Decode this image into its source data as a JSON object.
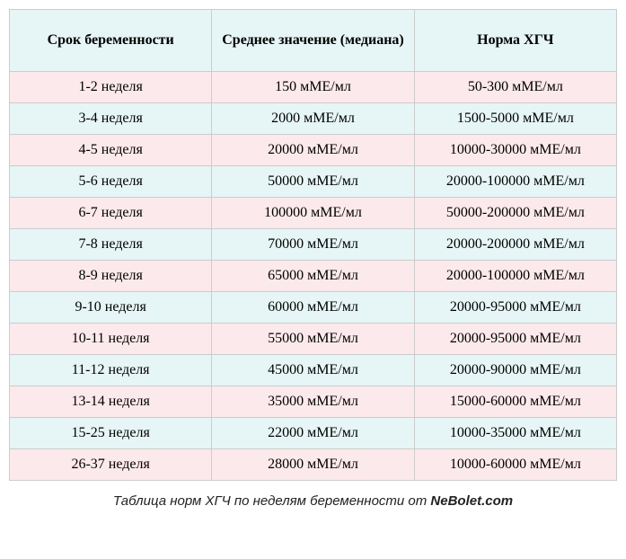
{
  "table": {
    "columns": [
      "Срок беременности",
      "Среднее значение (медиана)",
      "Норма ХГЧ"
    ],
    "rows": [
      [
        "1-2 неделя",
        "150 мМЕ/мл",
        "50-300 мМЕ/мл"
      ],
      [
        "3-4 неделя",
        "2000 мМЕ/мл",
        "1500-5000 мМЕ/мл"
      ],
      [
        "4-5 неделя",
        "20000 мМЕ/мл",
        "10000-30000 мМЕ/мл"
      ],
      [
        "5-6 неделя",
        "50000 мМЕ/мл",
        "20000-100000 мМЕ/мл"
      ],
      [
        "6-7 неделя",
        "100000 мМЕ/мл",
        "50000-200000 мМЕ/мл"
      ],
      [
        "7-8 неделя",
        "70000 мМЕ/мл",
        "20000-200000 мМЕ/мл"
      ],
      [
        "8-9 неделя",
        "65000 мМЕ/мл",
        "20000-100000 мМЕ/мл"
      ],
      [
        "9-10 неделя",
        "60000 мМЕ/мл",
        "20000-95000 мМЕ/мл"
      ],
      [
        "10-11 неделя",
        "55000 мМЕ/мл",
        "20000-95000 мМЕ/мл"
      ],
      [
        "11-12 неделя",
        "45000 мМЕ/мл",
        "20000-90000 мМЕ/мл"
      ],
      [
        "13-14 неделя",
        "35000 мМЕ/мл",
        "15000-60000 мМЕ/мл"
      ],
      [
        "15-25 неделя",
        "22000 мМЕ/мл",
        "10000-35000 мМЕ/мл"
      ],
      [
        "26-37 неделя",
        "28000 мМЕ/мл",
        "10000-60000 мМЕ/мл"
      ]
    ],
    "header_bg": "#e6f5f5",
    "row_odd_bg": "#fce9eb",
    "row_even_bg": "#e6f5f5",
    "border_color": "#cccccc",
    "font_family": "Times New Roman",
    "font_size_pt": 12
  },
  "caption": {
    "text_prefix": "Таблица норм ХГЧ по неделям беременности от ",
    "brand": "NeBolet.com",
    "font_family": "Arial",
    "font_style": "italic",
    "font_size_pt": 11,
    "text_color": "#222222"
  }
}
